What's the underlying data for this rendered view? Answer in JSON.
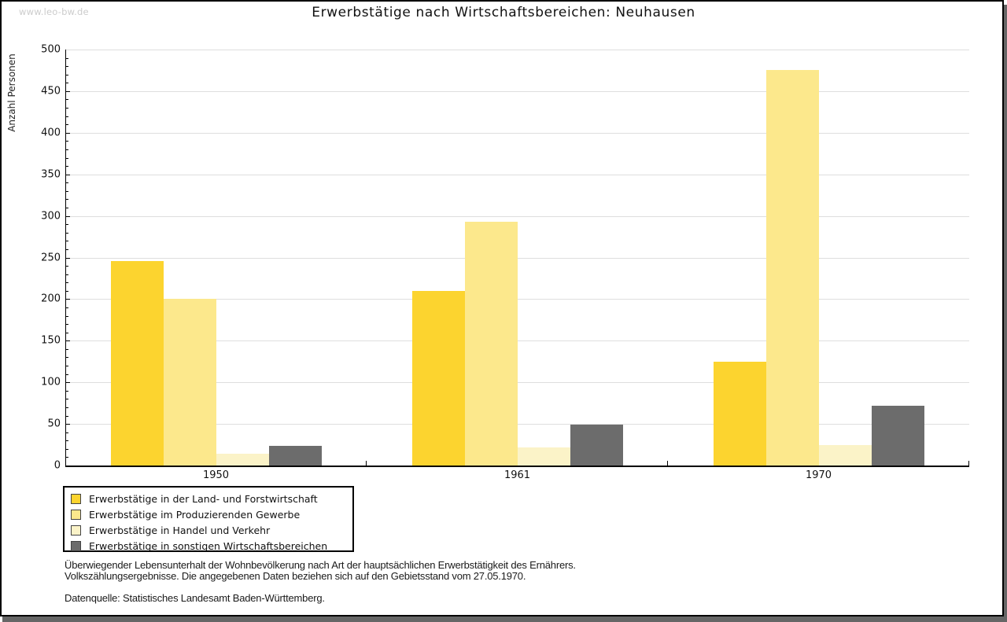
{
  "watermark": "www.leo-bw.de",
  "title": "Erwerbstätige nach Wirtschaftsbereichen: Neuhausen",
  "chart_data": {
    "type": "bar",
    "title": "Erwerbstätige nach Wirtschaftsbereichen: Neuhausen",
    "xlabel": "",
    "ylabel": "Anzahl Personen",
    "ylim": [
      0,
      500
    ],
    "yticks": [
      0,
      50,
      100,
      150,
      200,
      250,
      300,
      350,
      400,
      450,
      500
    ],
    "minor_tick_step": 10,
    "grid": true,
    "legend_position": "bottom-left",
    "categories": [
      "1950",
      "1961",
      "1970"
    ],
    "series": [
      {
        "name": "Erwerbstätige in der Land- und Forstwirtschaft",
        "color": "#FCD42F",
        "values": [
          246,
          210,
          125
        ]
      },
      {
        "name": "Erwerbstätige im Produzierenden Gewerbe",
        "color": "#FCE88C",
        "values": [
          200,
          293,
          475
        ]
      },
      {
        "name": "Erwerbstätige in Handel und Verkehr",
        "color": "#FBF3C8",
        "values": [
          14,
          22,
          25
        ]
      },
      {
        "name": "Erwerbstätige in sonstigen Wirtschaftsbereichen",
        "color": "#6C6C6C",
        "values": [
          24,
          49,
          72
        ]
      }
    ]
  },
  "footnotes": [
    "Überwiegender Lebensunterhalt der Wohnbevölkerung nach Art der hauptsächlichen Erwerbstätigkeit des Ernährers.",
    "Volkszählungsergebnisse. Die angegebenen Daten beziehen sich auf den Gebietsstand vom 27.05.1970."
  ],
  "source": "Datenquelle: Statistisches Landesamt Baden-Württemberg.",
  "colors": {
    "grid": "#dedede",
    "axis": "#000000",
    "watermark": "#cccccc",
    "frame_shadow": "#666666"
  }
}
